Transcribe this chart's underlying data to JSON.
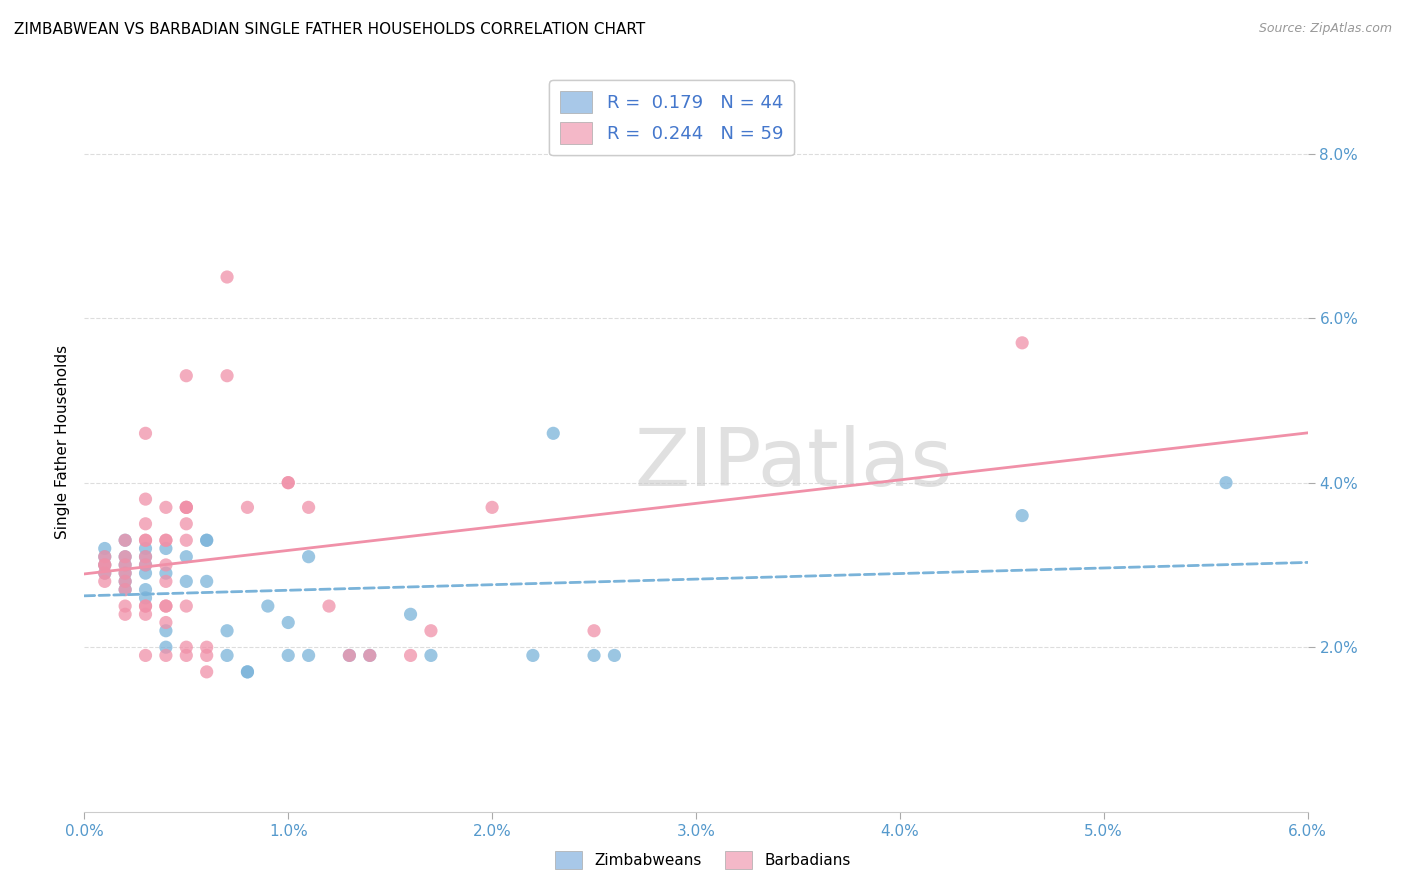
{
  "title": "ZIMBABWEAN VS BARBADIAN SINGLE FATHER HOUSEHOLDS CORRELATION CHART",
  "source": "Source: ZipAtlas.com",
  "ylabel": "Single Father Households",
  "xlim": [
    0.0,
    0.06
  ],
  "ylim": [
    0.0,
    0.09
  ],
  "xticks": [
    0.0,
    0.01,
    0.02,
    0.03,
    0.04,
    0.05,
    0.06
  ],
  "yticks_right": [
    0.02,
    0.04,
    0.06,
    0.08
  ],
  "watermark_text": "ZIPatlas",
  "zim_color": "#7ab3d9",
  "bar_color": "#f090a8",
  "zim_legend_color": "#a8c8e8",
  "bar_legend_color": "#f4b8c8",
  "zim_label": "R =  0.179   N = 44",
  "bar_label": "R =  0.244   N = 59",
  "zim_bottom_label": "Zimbabweans",
  "bar_bottom_label": "Barbadians",
  "legend_text_color": "#4477cc",
  "title_fontsize": 11,
  "background_color": "#ffffff",
  "grid_color": "#dddddd",
  "axis_color": "#5599cc",
  "zim_line_intercept": 0.03,
  "zim_line_slope": 0.18,
  "bar_line_intercept": 0.03,
  "bar_line_slope": 0.22,
  "zim_points": [
    [
      0.001,
      0.032
    ],
    [
      0.001,
      0.031
    ],
    [
      0.001,
      0.03
    ],
    [
      0.001,
      0.029
    ],
    [
      0.002,
      0.033
    ],
    [
      0.002,
      0.031
    ],
    [
      0.002,
      0.03
    ],
    [
      0.002,
      0.029
    ],
    [
      0.002,
      0.028
    ],
    [
      0.002,
      0.027
    ],
    [
      0.003,
      0.032
    ],
    [
      0.003,
      0.031
    ],
    [
      0.003,
      0.03
    ],
    [
      0.003,
      0.029
    ],
    [
      0.003,
      0.027
    ],
    [
      0.003,
      0.026
    ],
    [
      0.004,
      0.032
    ],
    [
      0.004,
      0.029
    ],
    [
      0.004,
      0.022
    ],
    [
      0.004,
      0.02
    ],
    [
      0.005,
      0.031
    ],
    [
      0.005,
      0.028
    ],
    [
      0.006,
      0.033
    ],
    [
      0.006,
      0.033
    ],
    [
      0.006,
      0.028
    ],
    [
      0.007,
      0.022
    ],
    [
      0.007,
      0.019
    ],
    [
      0.008,
      0.017
    ],
    [
      0.008,
      0.017
    ],
    [
      0.009,
      0.025
    ],
    [
      0.01,
      0.023
    ],
    [
      0.01,
      0.019
    ],
    [
      0.011,
      0.031
    ],
    [
      0.011,
      0.019
    ],
    [
      0.013,
      0.019
    ],
    [
      0.014,
      0.019
    ],
    [
      0.016,
      0.024
    ],
    [
      0.017,
      0.019
    ],
    [
      0.022,
      0.019
    ],
    [
      0.023,
      0.046
    ],
    [
      0.025,
      0.019
    ],
    [
      0.026,
      0.019
    ],
    [
      0.046,
      0.036
    ],
    [
      0.056,
      0.04
    ]
  ],
  "bar_points": [
    [
      0.001,
      0.031
    ],
    [
      0.001,
      0.03
    ],
    [
      0.001,
      0.03
    ],
    [
      0.001,
      0.029
    ],
    [
      0.001,
      0.028
    ],
    [
      0.002,
      0.033
    ],
    [
      0.002,
      0.031
    ],
    [
      0.002,
      0.03
    ],
    [
      0.002,
      0.029
    ],
    [
      0.002,
      0.028
    ],
    [
      0.002,
      0.027
    ],
    [
      0.002,
      0.025
    ],
    [
      0.002,
      0.024
    ],
    [
      0.003,
      0.046
    ],
    [
      0.003,
      0.038
    ],
    [
      0.003,
      0.035
    ],
    [
      0.003,
      0.033
    ],
    [
      0.003,
      0.033
    ],
    [
      0.003,
      0.031
    ],
    [
      0.003,
      0.03
    ],
    [
      0.003,
      0.025
    ],
    [
      0.003,
      0.025
    ],
    [
      0.003,
      0.024
    ],
    [
      0.003,
      0.019
    ],
    [
      0.004,
      0.037
    ],
    [
      0.004,
      0.033
    ],
    [
      0.004,
      0.033
    ],
    [
      0.004,
      0.03
    ],
    [
      0.004,
      0.028
    ],
    [
      0.004,
      0.025
    ],
    [
      0.004,
      0.025
    ],
    [
      0.004,
      0.023
    ],
    [
      0.004,
      0.019
    ],
    [
      0.005,
      0.053
    ],
    [
      0.005,
      0.037
    ],
    [
      0.005,
      0.037
    ],
    [
      0.005,
      0.037
    ],
    [
      0.005,
      0.035
    ],
    [
      0.005,
      0.033
    ],
    [
      0.005,
      0.025
    ],
    [
      0.005,
      0.02
    ],
    [
      0.005,
      0.019
    ],
    [
      0.006,
      0.02
    ],
    [
      0.006,
      0.019
    ],
    [
      0.006,
      0.017
    ],
    [
      0.007,
      0.065
    ],
    [
      0.007,
      0.053
    ],
    [
      0.008,
      0.037
    ],
    [
      0.01,
      0.04
    ],
    [
      0.01,
      0.04
    ],
    [
      0.011,
      0.037
    ],
    [
      0.012,
      0.025
    ],
    [
      0.013,
      0.019
    ],
    [
      0.014,
      0.019
    ],
    [
      0.016,
      0.019
    ],
    [
      0.017,
      0.022
    ],
    [
      0.02,
      0.037
    ],
    [
      0.025,
      0.022
    ],
    [
      0.046,
      0.057
    ]
  ]
}
